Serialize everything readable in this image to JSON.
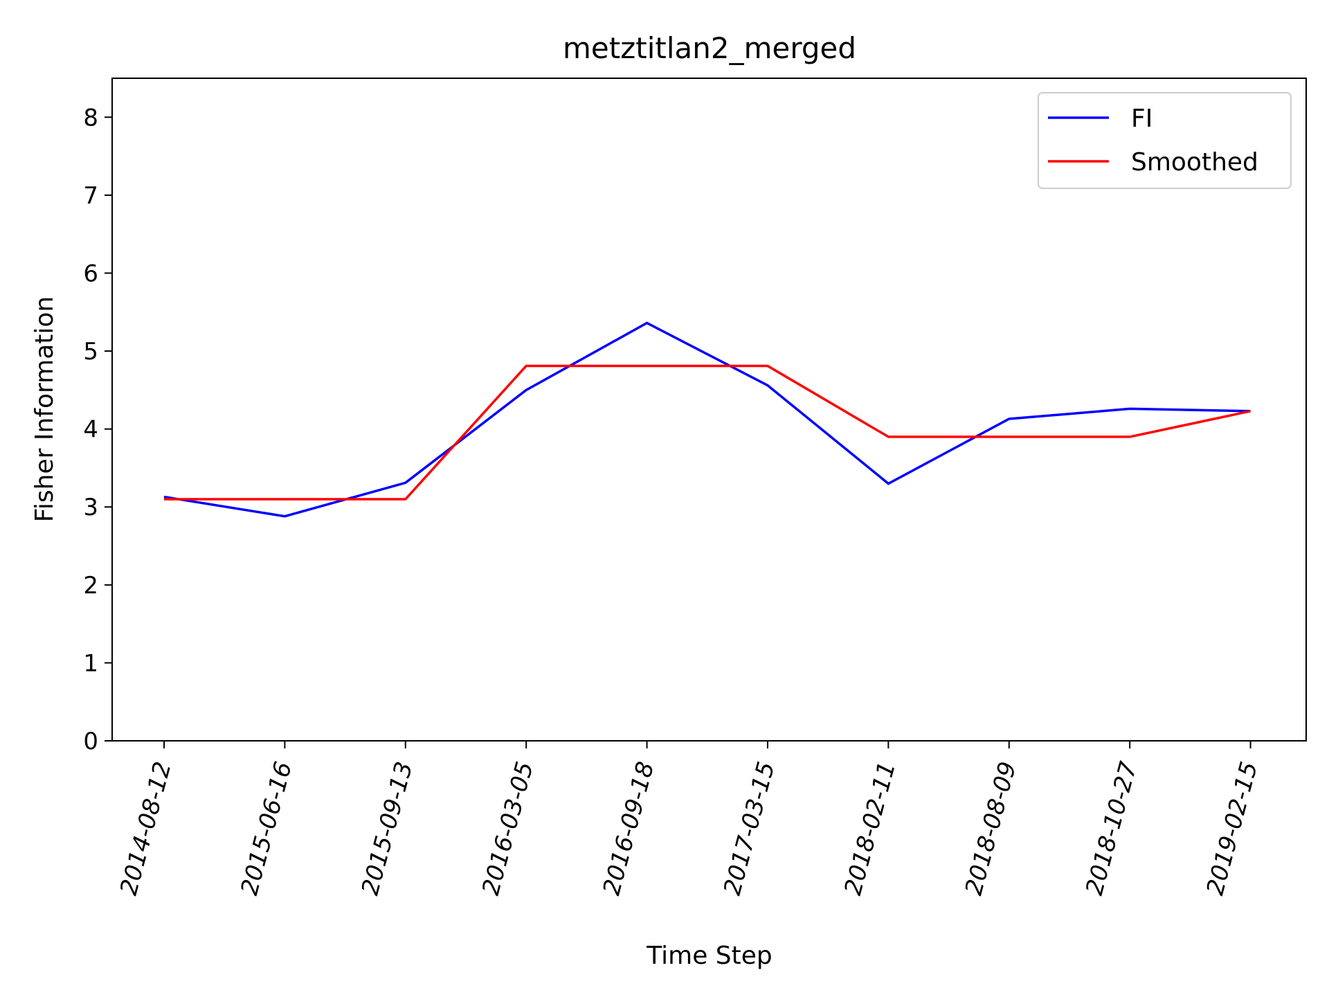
{
  "chart_data": {
    "type": "line",
    "title": "metztitlan2_merged",
    "xlabel": "Time Step",
    "ylabel": "Fisher Information",
    "categories": [
      "2014-08-12",
      "2015-06-16",
      "2015-09-13",
      "2016-03-05",
      "2016-09-18",
      "2017-03-15",
      "2018-02-11",
      "2018-08-09",
      "2018-10-27",
      "2019-02-15"
    ],
    "yticks": [
      0,
      1,
      2,
      3,
      4,
      5,
      6,
      7,
      8
    ],
    "ylim": [
      0,
      8.5
    ],
    "grid": false,
    "legend_position": "top-right",
    "series": [
      {
        "name": "FI",
        "color": "#0000ff",
        "values": [
          3.13,
          2.88,
          3.31,
          4.5,
          5.36,
          4.56,
          3.3,
          4.13,
          4.26,
          4.23
        ]
      },
      {
        "name": "Smoothed",
        "color": "#ff0000",
        "values": [
          3.1,
          3.1,
          3.1,
          4.81,
          4.81,
          4.81,
          3.9,
          3.9,
          3.9,
          4.23
        ]
      }
    ]
  }
}
